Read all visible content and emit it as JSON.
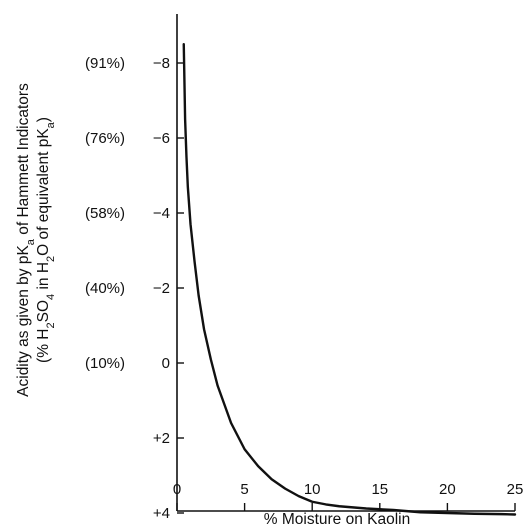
{
  "chart_data": {
    "type": "line",
    "xlabel": "% Moisture on Kaolin",
    "ylabel": {
      "line1": [
        "Acidity as given by pK",
        "a",
        " of Hammett Indicators"
      ],
      "line2": [
        "(% H",
        "2",
        "SO",
        "4",
        " in H",
        "2",
        "O of equivalent pK",
        "a",
        ")"
      ]
    },
    "xlim": [
      0,
      25
    ],
    "ylim": [
      -9,
      4
    ],
    "y_inverted": true,
    "grid": false,
    "x_ticks": [
      {
        "value": 0,
        "label": "0"
      },
      {
        "value": 5,
        "label": "5"
      },
      {
        "value": 10,
        "label": "10"
      },
      {
        "value": 15,
        "label": "15"
      },
      {
        "value": 20,
        "label": "20"
      },
      {
        "value": 25,
        "label": "25"
      }
    ],
    "y_ticks": [
      {
        "value": -8,
        "label": "−8",
        "alt": "(91%)"
      },
      {
        "value": -6,
        "label": "−6",
        "alt": "(76%)"
      },
      {
        "value": -4,
        "label": "−4",
        "alt": "(58%)"
      },
      {
        "value": -2,
        "label": "−2",
        "alt": "(40%)"
      },
      {
        "value": 0,
        "label": "0",
        "alt": "(10%)"
      },
      {
        "value": 2,
        "label": "+2",
        "alt": ""
      },
      {
        "value": 4,
        "label": "+4",
        "alt": ""
      }
    ],
    "series": [
      {
        "color": "#111111",
        "x": [
          0.5,
          0.55,
          0.6,
          0.7,
          0.8,
          1.0,
          1.3,
          1.6,
          2.0,
          2.5,
          3.0,
          3.5,
          4.0,
          4.5,
          5.0,
          6.0,
          7.0,
          8.0,
          9.0,
          10.0,
          11.0,
          12.0,
          13.0,
          14.0,
          15.0,
          16.0,
          17.0,
          18.0,
          20.0,
          22.0,
          24.0,
          25.0
        ],
        "y": [
          -8.5,
          -7.5,
          -6.5,
          -5.5,
          -4.7,
          -3.7,
          -2.7,
          -1.8,
          -0.9,
          -0.1,
          0.6,
          1.1,
          1.6,
          1.95,
          2.3,
          2.75,
          3.1,
          3.35,
          3.55,
          3.7,
          3.77,
          3.82,
          3.85,
          3.88,
          3.9,
          3.92,
          3.95,
          3.98,
          4.0,
          4.02,
          4.03,
          4.04
        ]
      }
    ]
  }
}
